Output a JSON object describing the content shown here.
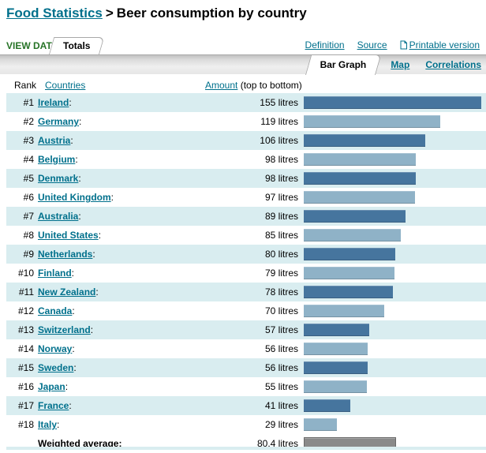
{
  "header": {
    "breadcrumb": "Food Statistics",
    "separator": ">",
    "title": "Beer consumption by country"
  },
  "view_data": {
    "label": "VIEW DATA:",
    "tab": "Totals",
    "definition": "Definition",
    "source": "Source",
    "printable": "Printable version"
  },
  "graph_tabs": {
    "active": "Bar Graph",
    "map": "Map",
    "correlations": "Correlations"
  },
  "table": {
    "rank_header": "Rank",
    "countries_header": "Countries",
    "amount_header": "Amount",
    "amount_note": "(top to bottom)",
    "country_suffix": ":",
    "unit": "litres",
    "rows": [
      {
        "rank": "#1",
        "country": "Ireland",
        "amount_label": "155 litres",
        "value": 155
      },
      {
        "rank": "#2",
        "country": "Germany",
        "amount_label": "119 litres",
        "value": 119
      },
      {
        "rank": "#3",
        "country": "Austria",
        "amount_label": "106 litres",
        "value": 106
      },
      {
        "rank": "#4",
        "country": "Belgium",
        "amount_label": "98 litres",
        "value": 98
      },
      {
        "rank": "#5",
        "country": "Denmark",
        "amount_label": "98 litres",
        "value": 98
      },
      {
        "rank": "#6",
        "country": "United Kingdom",
        "amount_label": "97 litres",
        "value": 97
      },
      {
        "rank": "#7",
        "country": "Australia",
        "amount_label": "89 litres",
        "value": 89
      },
      {
        "rank": "#8",
        "country": "United States",
        "amount_label": "85 litres",
        "value": 85
      },
      {
        "rank": "#9",
        "country": "Netherlands",
        "amount_label": "80 litres",
        "value": 80
      },
      {
        "rank": "#10",
        "country": "Finland",
        "amount_label": "79 litres",
        "value": 79
      },
      {
        "rank": "#11",
        "country": "New Zealand",
        "amount_label": "78 litres",
        "value": 78
      },
      {
        "rank": "#12",
        "country": "Canada",
        "amount_label": "70 litres",
        "value": 70
      },
      {
        "rank": "#13",
        "country": "Switzerland",
        "amount_label": "57 litres",
        "value": 57
      },
      {
        "rank": "#14",
        "country": "Norway",
        "amount_label": "56 litres",
        "value": 56
      },
      {
        "rank": "#15",
        "country": "Sweden",
        "amount_label": "56 litres",
        "value": 56
      },
      {
        "rank": "#16",
        "country": "Japan",
        "amount_label": "55 litres",
        "value": 55
      },
      {
        "rank": "#17",
        "country": "France",
        "amount_label": "41 litres",
        "value": 41
      },
      {
        "rank": "#18",
        "country": "Italy",
        "amount_label": "29 litres",
        "value": 29
      }
    ],
    "footer": {
      "label": "Weighted average:",
      "amount_label": "80.4 litres",
      "value": 80.4
    }
  },
  "colors": {
    "link_teal": "#00708c",
    "view_data_green": "#267326",
    "bar_dark": "#46759e",
    "bar_light": "#8fb2c7",
    "row_highlight": "#d9edf0",
    "avg_bar_fill": "#8a8a8a",
    "avg_bar_border": "#696969"
  },
  "chart_data": {
    "type": "bar",
    "orientation": "horizontal",
    "title": "Beer consumption by country",
    "categories": [
      "Ireland",
      "Germany",
      "Austria",
      "Belgium",
      "Denmark",
      "United Kingdom",
      "Australia",
      "United States",
      "Netherlands",
      "Finland",
      "New Zealand",
      "Canada",
      "Switzerland",
      "Norway",
      "Sweden",
      "Japan",
      "France",
      "Italy"
    ],
    "values": [
      155,
      119,
      106,
      98,
      98,
      97,
      89,
      85,
      80,
      79,
      78,
      70,
      57,
      56,
      56,
      55,
      41,
      29
    ],
    "unit": "litres",
    "weighted_average": 80.4,
    "xlim": [
      0,
      160
    ],
    "grid": false,
    "legend": false
  }
}
